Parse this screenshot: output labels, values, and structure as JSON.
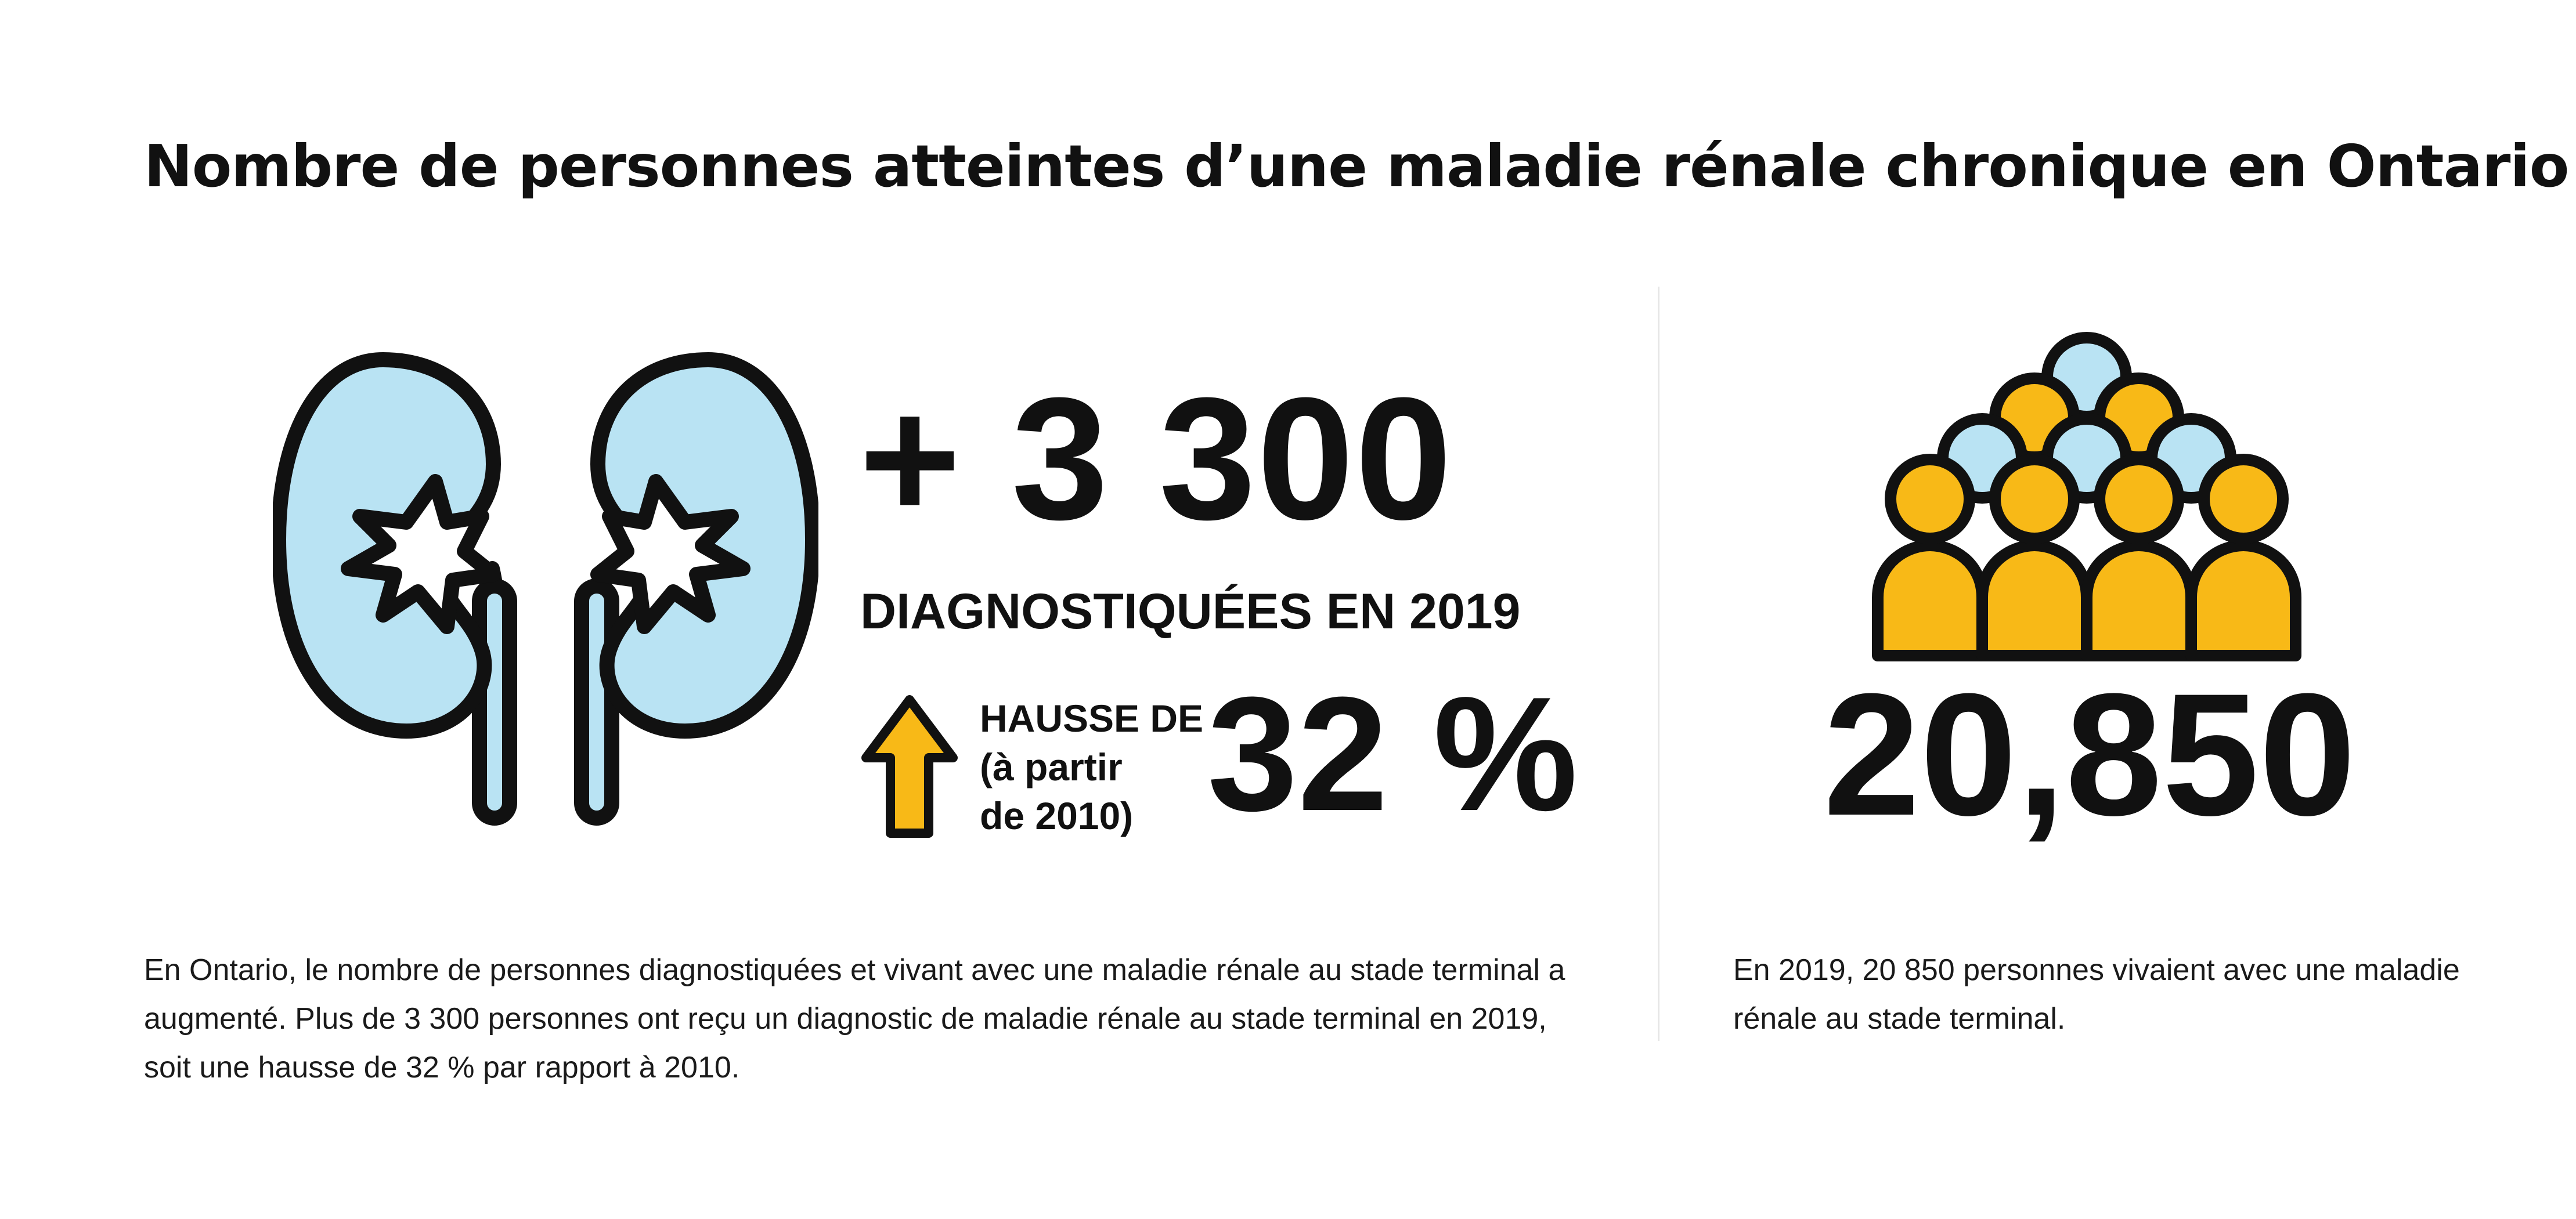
{
  "title": "Nombre de personnes atteintes d’une maladie rénale chronique en Ontario",
  "diagnoses": {
    "value": "+ 3 300",
    "label": "DIAGNOSTIQUÉES EN 2019"
  },
  "increase": {
    "line1": "HAUSSE DE",
    "line2": "(à partir",
    "line3": "de 2010)",
    "percent": "32 %",
    "arrow_icon": "up-arrow-icon"
  },
  "total": {
    "value": "20,850"
  },
  "descriptions": {
    "left": "En Ontario, le nombre de personnes diagnostiquées et vivant avec une maladie rénale au stade terminal a augmenté. Plus de 3 300 personnes ont reçu un diagnostic de maladie rénale au stade terminal en 2019, soit une hausse de 32 % par rapport à 2010.",
    "right": "En 2019, 20 850 personnes vivaient avec une maladie rénale au stade terminal."
  },
  "icons": {
    "kidneys": "kidneys-icon",
    "people": "people-group-icon"
  },
  "colors": {
    "kidney_fill": "#b9e3f3",
    "people_gold": "#f8b917",
    "people_blue": "#b9e3f3",
    "outline": "#111111"
  }
}
